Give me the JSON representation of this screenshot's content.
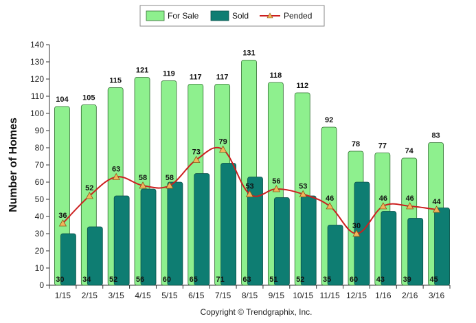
{
  "chart_data": {
    "type": "bar",
    "categories": [
      "1/15",
      "2/15",
      "3/15",
      "4/15",
      "5/15",
      "6/15",
      "7/15",
      "8/15",
      "9/15",
      "10/15",
      "11/15",
      "12/15",
      "1/16",
      "2/16",
      "3/16"
    ],
    "series": [
      {
        "name": "For Sale",
        "kind": "bar",
        "color": "#8ef08e",
        "values": [
          104,
          105,
          115,
          121,
          119,
          117,
          117,
          131,
          118,
          112,
          92,
          78,
          77,
          74,
          83
        ]
      },
      {
        "name": "Sold",
        "kind": "bar",
        "color": "#0e7d72",
        "values": [
          30,
          34,
          52,
          56,
          60,
          65,
          71,
          63,
          51,
          52,
          35,
          60,
          43,
          39,
          45
        ]
      },
      {
        "name": "Pended",
        "kind": "line",
        "color": "#cc1f1f",
        "marker_color": "#f2b35a",
        "values": [
          36,
          52,
          63,
          58,
          58,
          73,
          79,
          53,
          56,
          53,
          46,
          30,
          46,
          46,
          44
        ]
      }
    ],
    "ylabel": "Number of Homes",
    "xlabel": "",
    "ylim": [
      0,
      140
    ],
    "yticks": [
      0,
      10,
      20,
      30,
      40,
      50,
      60,
      70,
      80,
      90,
      100,
      110,
      120,
      130,
      140
    ],
    "grid": false,
    "legend_position": "top-center"
  },
  "copyright": "Copyright © Trendgraphix, Inc."
}
